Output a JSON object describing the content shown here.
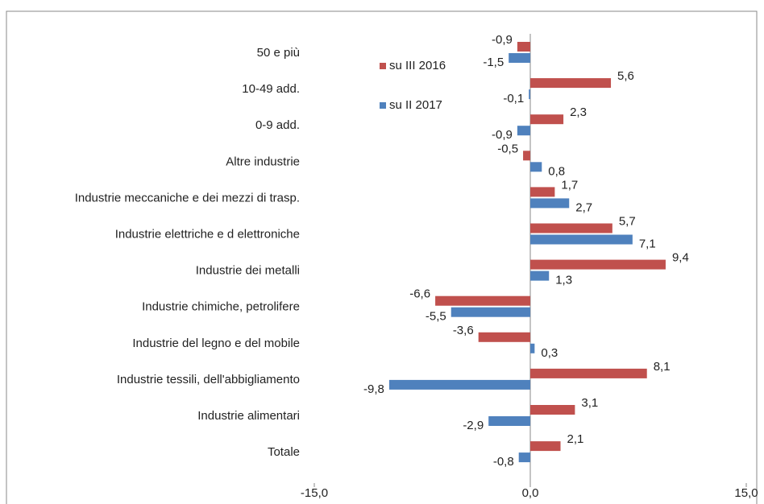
{
  "chart_data": {
    "type": "bar",
    "orientation": "horizontal",
    "categories": [
      "50 e più",
      "10-49 add.",
      "0-9 add.",
      "Altre industrie",
      "Industrie meccaniche e dei mezzi di trasp.",
      "Industrie elettriche e d elettroniche",
      "Industrie dei metalli",
      "Industrie chimiche, petrolifere",
      "Industrie del legno e del mobile",
      "Industrie tessili, dell'abbigliamento",
      "Industrie alimentari",
      "Totale"
    ],
    "series": [
      {
        "name": "su III 2016",
        "color": "#c0504d",
        "values": [
          -0.9,
          5.6,
          2.3,
          -0.5,
          1.7,
          5.7,
          9.4,
          -6.6,
          -3.6,
          8.1,
          3.1,
          2.1
        ],
        "value_labels": [
          "-0,9",
          "5,6",
          "2,3",
          "-0,5",
          "1,7",
          "5,7",
          "9,4",
          "-6,6",
          "-3,6",
          "8,1",
          "3,1",
          "2,1"
        ]
      },
      {
        "name": "su II 2017",
        "color": "#4f81bd",
        "values": [
          -1.5,
          -0.1,
          -0.9,
          0.8,
          2.7,
          7.1,
          1.3,
          -5.5,
          0.3,
          -9.8,
          -2.9,
          -0.8
        ],
        "value_labels": [
          "-1,5",
          "-0,1",
          "-0,9",
          "0,8",
          "2,7",
          "7,1",
          "1,3",
          "-5,5",
          "0,3",
          "-9,8",
          "-2,9",
          "-0,8"
        ]
      }
    ],
    "xlim": [
      -15,
      15
    ],
    "xticks": [
      {
        "value": -15,
        "label": "-15,0"
      },
      {
        "value": 0,
        "label": "0,0"
      },
      {
        "value": 15,
        "label": "15,0"
      }
    ]
  }
}
